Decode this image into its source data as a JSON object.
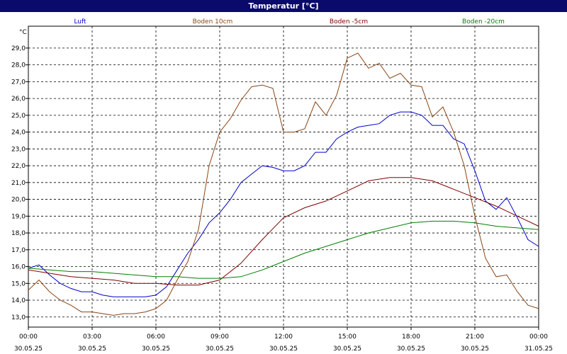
{
  "window": {
    "title": "Temperatur [°C]"
  },
  "chart_data": {
    "type": "line",
    "title": "Temperatur [°C]",
    "ylabel": "°C",
    "ylim": [
      12.4,
      30.3
    ],
    "xlim_hours": [
      0,
      24
    ],
    "grid": true,
    "legend": "top",
    "y_ticks": [
      "13,0",
      "14,0",
      "15,0",
      "16,0",
      "17,0",
      "18,0",
      "19,0",
      "20,0",
      "21,0",
      "22,0",
      "23,0",
      "24,0",
      "25,0",
      "26,0",
      "27,0",
      "28,0",
      "29,0"
    ],
    "x_ticks": [
      {
        "time": "00:00",
        "date": "30.05.25"
      },
      {
        "time": "03:00",
        "date": "30.05.25"
      },
      {
        "time": "06:00",
        "date": "30.05.25"
      },
      {
        "time": "09:00",
        "date": "30.05.25"
      },
      {
        "time": "12:00",
        "date": "30.05.25"
      },
      {
        "time": "15:00",
        "date": "30.05.25"
      },
      {
        "time": "18:00",
        "date": "30.05.25"
      },
      {
        "time": "21:00",
        "date": "30.05.25"
      },
      {
        "time": "00:00",
        "date": "31.05.25"
      }
    ],
    "series": [
      {
        "name": "Luft",
        "color": "#0000cc",
        "x": [
          0,
          0.5,
          1,
          1.5,
          2,
          2.5,
          3,
          3.5,
          4,
          4.5,
          5,
          5.5,
          6,
          6.5,
          7,
          7.5,
          8,
          8.5,
          9,
          9.5,
          10,
          10.5,
          11,
          11.5,
          12,
          12.5,
          13,
          13.5,
          14,
          14.5,
          15,
          15.5,
          16,
          16.5,
          17,
          17.5,
          18,
          18.5,
          19,
          19.5,
          20,
          20.5,
          21,
          21.5,
          22,
          22.5,
          23,
          23.5,
          24
        ],
        "y": [
          15.9,
          16.1,
          15.5,
          15.0,
          14.7,
          14.5,
          14.5,
          14.3,
          14.2,
          14.2,
          14.2,
          14.2,
          14.3,
          14.8,
          15.8,
          16.8,
          17.6,
          18.6,
          19.2,
          20.0,
          21.0,
          21.5,
          22.0,
          21.9,
          21.7,
          21.7,
          22.0,
          22.8,
          22.8,
          23.6,
          24.0,
          24.3,
          24.4,
          24.5,
          25.0,
          25.2,
          25.2,
          25.0,
          24.4,
          24.4,
          23.6,
          23.3,
          21.7,
          19.9,
          19.4,
          20.1,
          18.9,
          17.6,
          17.2
        ]
      },
      {
        "name": "Boden 10cm",
        "color": "#8b4513",
        "x": [
          0,
          0.5,
          1,
          1.5,
          2,
          2.5,
          3,
          3.5,
          4,
          4.5,
          5,
          5.5,
          6,
          6.5,
          7,
          7.5,
          8,
          8.5,
          9,
          9.5,
          10,
          10.5,
          11,
          11.5,
          12,
          12.5,
          13,
          13.5,
          14,
          14.5,
          15,
          15.5,
          16,
          16.5,
          17,
          17.5,
          18,
          18.5,
          19,
          19.5,
          20,
          20.5,
          21,
          21.5,
          22,
          22.5,
          23,
          23.5,
          24
        ],
        "y": [
          14.6,
          15.2,
          14.5,
          14.0,
          13.7,
          13.3,
          13.3,
          13.2,
          13.1,
          13.2,
          13.2,
          13.3,
          13.5,
          14.0,
          15.2,
          16.3,
          18.2,
          22.0,
          24.0,
          24.8,
          25.9,
          26.7,
          26.8,
          26.6,
          24.0,
          24.0,
          24.2,
          25.8,
          25.0,
          26.2,
          28.4,
          28.7,
          27.8,
          28.1,
          27.2,
          27.5,
          26.8,
          26.7,
          24.9,
          25.5,
          24.0,
          22.0,
          19.0,
          16.5,
          15.4,
          15.5,
          14.5,
          13.7,
          13.5
        ]
      },
      {
        "name": "Boden -5cm",
        "color": "#800000",
        "x": [
          0,
          1,
          2,
          3,
          4,
          5,
          6,
          7,
          8,
          9,
          10,
          11,
          12,
          13,
          14,
          15,
          16,
          17,
          18,
          19,
          20,
          21,
          22,
          23,
          24
        ],
        "y": [
          15.8,
          15.6,
          15.4,
          15.3,
          15.2,
          15.0,
          15.0,
          14.9,
          14.9,
          15.2,
          16.2,
          17.6,
          18.9,
          19.5,
          19.9,
          20.5,
          21.1,
          21.3,
          21.3,
          21.1,
          20.6,
          20.1,
          19.6,
          19.0,
          18.4
        ]
      },
      {
        "name": "Boden -20cm",
        "color": "#008000",
        "x": [
          0,
          1,
          2,
          3,
          4,
          5,
          6,
          7,
          8,
          9,
          10,
          11,
          12,
          13,
          14,
          15,
          16,
          17,
          18,
          19,
          20,
          21,
          22,
          23,
          24
        ],
        "y": [
          15.9,
          15.8,
          15.7,
          15.7,
          15.6,
          15.5,
          15.4,
          15.4,
          15.3,
          15.3,
          15.4,
          15.8,
          16.3,
          16.8,
          17.2,
          17.6,
          18.0,
          18.3,
          18.6,
          18.7,
          18.7,
          18.6,
          18.4,
          18.3,
          18.2
        ]
      }
    ]
  }
}
